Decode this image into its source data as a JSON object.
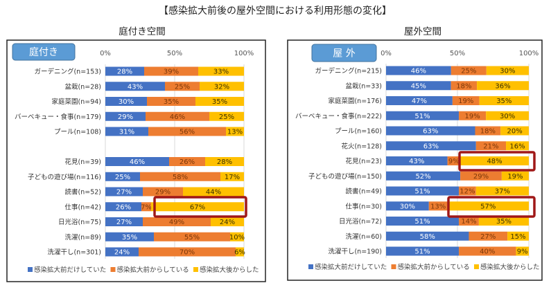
{
  "title": "【感染拡大前後の屋外空間における利用形態の変化】",
  "colors": {
    "before_only": "#4472c4",
    "since_before": "#ed7d31",
    "since_after": "#ffc000",
    "highlight": "#a01818",
    "badge": "#5b9bd5"
  },
  "chart_data": [
    {
      "type": "bar",
      "orientation": "horizontal-stacked-100",
      "title": "庭付き空間",
      "badge": "庭付き",
      "xlim": [
        0,
        100
      ],
      "xticks": [
        "0%",
        "50%",
        "100%"
      ],
      "grid": true,
      "legend_position": "bottom",
      "categories": [
        "ガーデニング(n=153)",
        "盆栽(n=28)",
        "家庭菜園(n=94)",
        "バーベキュー・食事(n=179)",
        "プール(n=108)",
        "花見(n=39)",
        "子どもの遊び場(n=116)",
        "読書(n=52)",
        "仕事(n=42)",
        "日光浴(n=75)",
        "洗濯(n=89)",
        "洗濯干し(n=301)"
      ],
      "series": [
        {
          "name": "感染拡大前だけしていた",
          "values": [
            28,
            43,
            30,
            29,
            31,
            46,
            25,
            27,
            26,
            27,
            35,
            24
          ]
        },
        {
          "name": "感染拡大前からしている",
          "values": [
            39,
            25,
            35,
            46,
            56,
            26,
            58,
            29,
            7,
            49,
            55,
            70
          ]
        },
        {
          "name": "感染拡大後からした",
          "values": [
            33,
            32,
            35,
            25,
            13,
            28,
            17,
            44,
            67,
            24,
            10,
            6
          ]
        }
      ],
      "highlighted": [
        "仕事(n=42)"
      ]
    },
    {
      "type": "bar",
      "orientation": "horizontal-stacked-100",
      "title": "屋外空間",
      "badge": "屋 外",
      "xlim": [
        0,
        100
      ],
      "xticks": [
        "0%",
        "50%",
        "100%"
      ],
      "grid": true,
      "legend_position": "bottom",
      "categories": [
        "ガーデニング(n=215)",
        "盆栽(n=33)",
        "家庭菜園(n=176)",
        "バーベキュー・食事(n=222)",
        "プール(n=160)",
        "花火(n=128)",
        "花見(n=23)",
        "子どもの遊び場(n=150)",
        "読書(n=49)",
        "仕事(n=30)",
        "日光浴(n=72)",
        "洗濯(n=60)",
        "洗濯干し(n=190)"
      ],
      "series": [
        {
          "name": "感染拡大前だけしていた",
          "values": [
            46,
            45,
            47,
            51,
            63,
            63,
            43,
            52,
            51,
            30,
            51,
            58,
            51
          ]
        },
        {
          "name": "感染拡大前からしている",
          "values": [
            25,
            18,
            19,
            19,
            18,
            21,
            9,
            29,
            12,
            13,
            14,
            27,
            40
          ]
        },
        {
          "name": "感染拡大後からした",
          "values": [
            30,
            36,
            35,
            30,
            20,
            16,
            48,
            19,
            37,
            57,
            35,
            15,
            9
          ]
        }
      ],
      "highlighted": [
        "花見(n=23)",
        "仕事(n=30)"
      ]
    }
  ]
}
